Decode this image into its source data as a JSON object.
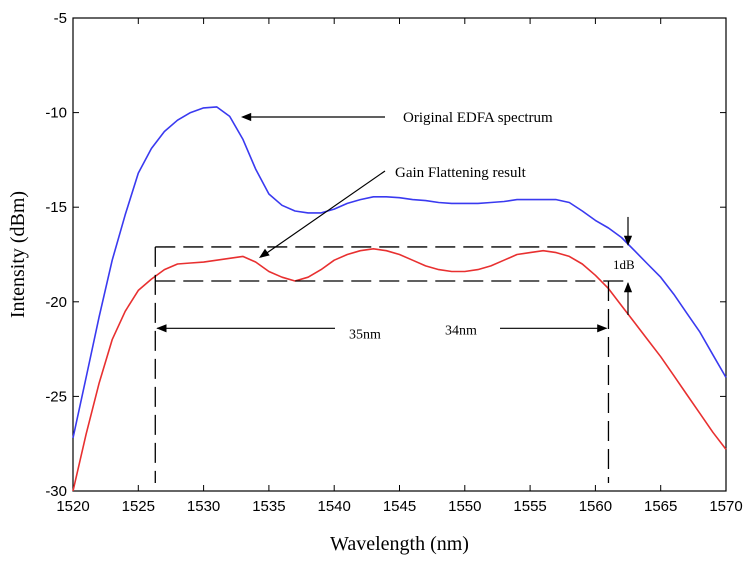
{
  "chart_data": {
    "type": "line",
    "title": "",
    "xlabel": "Wavelength (nm)",
    "ylabel": "Intensity (dBm)",
    "xlim": [
      1520,
      1570
    ],
    "ylim": [
      -30,
      -5
    ],
    "xticks": [
      1520,
      1525,
      1530,
      1535,
      1540,
      1545,
      1550,
      1555,
      1560,
      1565,
      1570
    ],
    "yticks": [
      -30,
      -25,
      -20,
      -15,
      -10,
      -5
    ],
    "grid": false,
    "legend": "none",
    "series": [
      {
        "color": "#3a3af0",
        "x": [
          1520,
          1521,
          1522,
          1523,
          1524,
          1525,
          1526,
          1527,
          1528,
          1529,
          1530,
          1531,
          1532,
          1533,
          1534,
          1535,
          1536,
          1537,
          1538,
          1539,
          1540,
          1541,
          1542,
          1543,
          1544,
          1545,
          1546,
          1547,
          1548,
          1549,
          1550,
          1551,
          1552,
          1553,
          1554,
          1555,
          1556,
          1557,
          1558,
          1559,
          1560,
          1561,
          1562,
          1563,
          1564,
          1565,
          1566,
          1567,
          1568,
          1569,
          1570
        ],
        "y": [
          -27.2,
          -24.0,
          -20.8,
          -17.8,
          -15.4,
          -13.2,
          -11.9,
          -11.0,
          -10.4,
          -10.0,
          -9.75,
          -9.7,
          -10.2,
          -11.4,
          -13.0,
          -14.3,
          -14.9,
          -15.2,
          -15.3,
          -15.3,
          -15.1,
          -14.8,
          -14.6,
          -14.45,
          -14.45,
          -14.5,
          -14.6,
          -14.65,
          -14.75,
          -14.8,
          -14.8,
          -14.8,
          -14.75,
          -14.7,
          -14.6,
          -14.6,
          -14.6,
          -14.6,
          -14.75,
          -15.2,
          -15.7,
          -16.1,
          -16.6,
          -17.3,
          -18.0,
          -18.7,
          -19.6,
          -20.6,
          -21.6,
          -22.8,
          -24.0
        ]
      },
      {
        "color": "#e83030",
        "x": [
          1520,
          1521,
          1522,
          1523,
          1524,
          1525,
          1526,
          1527,
          1528,
          1529,
          1530,
          1531,
          1532,
          1533,
          1534,
          1535,
          1536,
          1537,
          1538,
          1539,
          1540,
          1541,
          1542,
          1543,
          1544,
          1545,
          1546,
          1547,
          1548,
          1549,
          1550,
          1551,
          1552,
          1553,
          1554,
          1555,
          1556,
          1557,
          1558,
          1559,
          1560,
          1561,
          1562,
          1563,
          1564,
          1565,
          1566,
          1567,
          1568,
          1569,
          1570
        ],
        "y": [
          -30.0,
          -27.0,
          -24.3,
          -22.0,
          -20.5,
          -19.4,
          -18.8,
          -18.3,
          -18.0,
          -17.95,
          -17.9,
          -17.8,
          -17.7,
          -17.6,
          -17.9,
          -18.4,
          -18.7,
          -18.9,
          -18.7,
          -18.3,
          -17.8,
          -17.5,
          -17.3,
          -17.2,
          -17.3,
          -17.5,
          -17.8,
          -18.1,
          -18.3,
          -18.4,
          -18.4,
          -18.3,
          -18.1,
          -17.8,
          -17.5,
          -17.4,
          -17.3,
          -17.4,
          -17.6,
          -18.0,
          -18.6,
          -19.3,
          -20.2,
          -21.1,
          -22.0,
          -22.9,
          -23.9,
          -24.9,
          -25.9,
          -26.9,
          -27.8
        ]
      }
    ],
    "annotations": {
      "original_label": "Original EDFA spectrum",
      "gain_label": "Gain Flattening result",
      "db_label": "1dB",
      "span_label_1": "35nm",
      "span_label_2": "34nm",
      "dashed_upper_y": -17.1,
      "dashed_lower_y": -18.9,
      "dashed_left_x": 1526.3,
      "dashed_right_x": 1561.0,
      "dashed_x_end": 1562.3,
      "span_arrow_y": -21.4
    }
  }
}
